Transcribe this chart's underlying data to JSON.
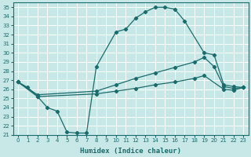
{
  "xlabel": "Humidex (Indice chaleur)",
  "xlim": [
    -0.5,
    23.5
  ],
  "ylim": [
    21,
    35.5
  ],
  "xticks": [
    0,
    1,
    2,
    3,
    4,
    5,
    6,
    7,
    8,
    9,
    10,
    11,
    12,
    13,
    14,
    15,
    16,
    17,
    18,
    19,
    20,
    21,
    22,
    23
  ],
  "yticks": [
    21,
    22,
    23,
    24,
    25,
    26,
    27,
    28,
    29,
    30,
    31,
    32,
    33,
    34,
    35
  ],
  "bg_color": "#c8e8e8",
  "line_color": "#1a6b6b",
  "grid_color": "#ffffff",
  "line1_x": [
    0,
    1,
    2,
    3,
    4,
    5,
    6,
    7,
    8,
    10,
    11,
    12,
    13,
    14,
    15,
    16,
    17,
    19,
    20,
    21,
    22,
    23
  ],
  "line1_y": [
    26.8,
    26.2,
    25.2,
    24.0,
    23.6,
    21.3,
    21.2,
    21.2,
    28.5,
    32.3,
    32.6,
    33.8,
    34.5,
    35.0,
    35.0,
    34.8,
    33.5,
    30.0,
    29.8,
    26.5,
    26.3,
    26.2
  ],
  "line2_x": [
    0,
    2,
    8,
    10,
    12,
    14,
    16,
    18,
    19,
    20,
    21,
    22,
    23
  ],
  "line2_y": [
    26.8,
    25.4,
    25.8,
    26.5,
    27.2,
    27.8,
    28.4,
    29.0,
    29.5,
    28.5,
    26.3,
    26.1,
    26.2
  ],
  "line3_x": [
    0,
    2,
    8,
    10,
    12,
    14,
    16,
    18,
    19,
    21,
    22,
    23
  ],
  "line3_y": [
    26.8,
    25.2,
    25.5,
    25.8,
    26.1,
    26.5,
    26.8,
    27.2,
    27.5,
    26.0,
    25.9,
    26.2
  ]
}
